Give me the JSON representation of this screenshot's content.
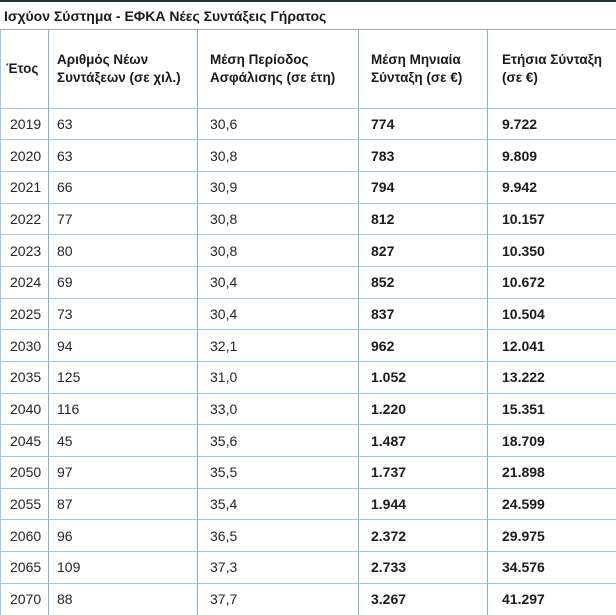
{
  "page_title": "Ισχύον Σύστημα - ΕΦΚΑ Νέες Συντάξεις Γήρατος",
  "table": {
    "columns": [
      "Έτος",
      "Αριθμός Νέων Συντάξεων (σε χιλ.)",
      "Μέση Περίοδος Ασφάλισης (σε έτη)",
      "Μέση Μηνιαία Σύνταξη (σε €)",
      "Ετήσια Σύνταξη (σε €)"
    ],
    "rows": [
      [
        "2019",
        "63",
        "30,6",
        "774",
        "9.722"
      ],
      [
        "2020",
        "63",
        "30,8",
        "783",
        "9.809"
      ],
      [
        "2021",
        "66",
        "30,9",
        "794",
        "9.942"
      ],
      [
        "2022",
        "77",
        "30,8",
        "812",
        "10.157"
      ],
      [
        "2023",
        "80",
        "30,8",
        "827",
        "10.350"
      ],
      [
        "2024",
        "69",
        "30,4",
        "852",
        "10.672"
      ],
      [
        "2025",
        "73",
        "30,4",
        "837",
        "10.504"
      ],
      [
        "2030",
        "94",
        "32,1",
        "962",
        "12.041"
      ],
      [
        "2035",
        "125",
        "31,0",
        "1.052",
        "13.222"
      ],
      [
        "2040",
        "116",
        "33,0",
        "1.220",
        "15.351"
      ],
      [
        "2045",
        "45",
        "35,6",
        "1.487",
        "18.709"
      ],
      [
        "2050",
        "97",
        "35,5",
        "1.737",
        "21.898"
      ],
      [
        "2055",
        "87",
        "35,4",
        "1.944",
        "24.599"
      ],
      [
        "2060",
        "96",
        "36,5",
        "2.372",
        "29.975"
      ],
      [
        "2065",
        "109",
        "37,3",
        "2.733",
        "34.576"
      ],
      [
        "2070",
        "88",
        "37,7",
        "3.267",
        "41.297"
      ]
    ]
  },
  "colors": {
    "title_top_border": "#24333b",
    "title_bottom_border": "#b0aaa2",
    "cell_border_horizontal": "#a3c6e8",
    "cell_border_vertical": "#7fadd6",
    "text": "#262626",
    "background": "#ffffff"
  },
  "chart_data": {
    "type": "table",
    "title": "Ισχύον Σύστημα - ΕΦΚΑ Νέες Συντάξεις Γήρατος",
    "categories": [
      "2019",
      "2020",
      "2021",
      "2022",
      "2023",
      "2024",
      "2025",
      "2030",
      "2035",
      "2040",
      "2045",
      "2050",
      "2055",
      "2060",
      "2065",
      "2070"
    ],
    "series": [
      {
        "name": "Αριθμός Νέων Συντάξεων (σε χιλ.)",
        "values": [
          63,
          63,
          66,
          77,
          80,
          69,
          73,
          94,
          125,
          116,
          45,
          97,
          87,
          96,
          109,
          88
        ]
      },
      {
        "name": "Μέση Περίοδος Ασφάλισης (σε έτη)",
        "values": [
          30.6,
          30.8,
          30.9,
          30.8,
          30.8,
          30.4,
          30.4,
          32.1,
          31.0,
          33.0,
          35.6,
          35.5,
          35.4,
          36.5,
          37.3,
          37.7
        ]
      },
      {
        "name": "Μέση Μηνιαία Σύνταξη (σε €)",
        "values": [
          774,
          783,
          794,
          812,
          827,
          852,
          837,
          962,
          1052,
          1220,
          1487,
          1737,
          1944,
          2372,
          2733,
          3267
        ]
      },
      {
        "name": "Ετήσια Σύνταξη (σε €)",
        "values": [
          9722,
          9809,
          9942,
          10157,
          10350,
          10672,
          10504,
          12041,
          13222,
          15351,
          18709,
          21898,
          24599,
          29975,
          34576,
          41297
        ]
      }
    ],
    "layout": "header row bold, last two value columns bold, light blue grid, last row clipped at bottom edge"
  }
}
